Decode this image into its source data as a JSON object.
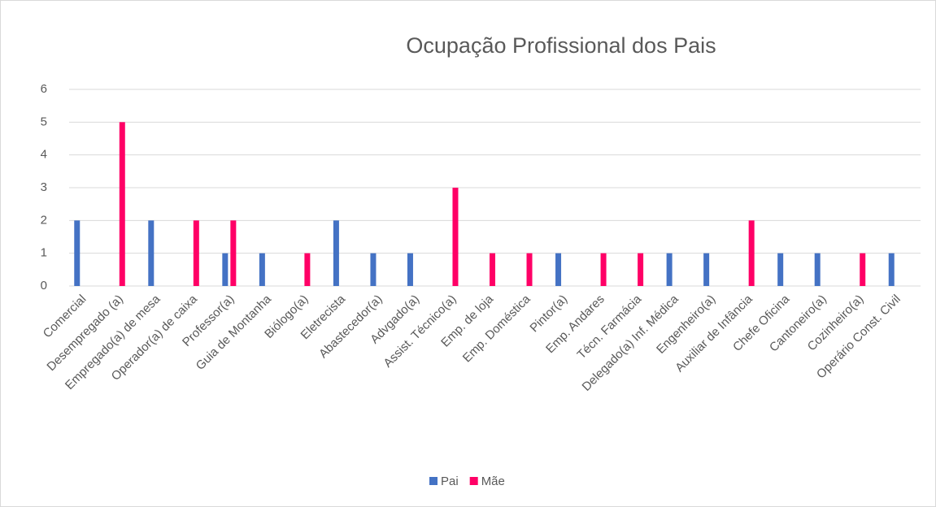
{
  "chart_data": {
    "type": "bar",
    "title": "Ocupação Profissional dos Pais",
    "categories": [
      "Comercial",
      "Desempregado (a)",
      "Empregado(a) de mesa",
      "Operador(a) de caixa",
      "Professor(a)",
      "Guia de Montanha",
      "Biólogo(a)",
      "Eletrecista",
      "Abastecedor(a)",
      "Advgado(a)",
      "Assist. Técnico(a)",
      "Emp. de loja",
      "Emp. Doméstica",
      "Pintor(a)",
      "Emp. Andares",
      "Técn. Farmácia",
      "Delegado(a) Inf. Médica",
      "Engenheiro(a)",
      "Auxiliar de Infância",
      "Chefe Oficina",
      "Cantoneiro(a)",
      "Cozinheiro(a)",
      "Operário Const. Civil"
    ],
    "series": [
      {
        "name": "Pai",
        "color": "#4472c4",
        "values": [
          2,
          0,
          2,
          0,
          1,
          1,
          0,
          2,
          1,
          1,
          0,
          0,
          0,
          1,
          0,
          0,
          1,
          1,
          0,
          1,
          1,
          0,
          1
        ]
      },
      {
        "name": "Mãe",
        "color": "#ff0066",
        "values": [
          0,
          5,
          0,
          2,
          2,
          0,
          1,
          0,
          0,
          0,
          3,
          1,
          1,
          0,
          1,
          1,
          0,
          0,
          2,
          0,
          0,
          1,
          0
        ]
      }
    ],
    "ylim": [
      0,
      6
    ],
    "yticks": [
      0,
      1,
      2,
      3,
      4,
      5,
      6
    ],
    "grid": true,
    "legend": "bottom"
  }
}
